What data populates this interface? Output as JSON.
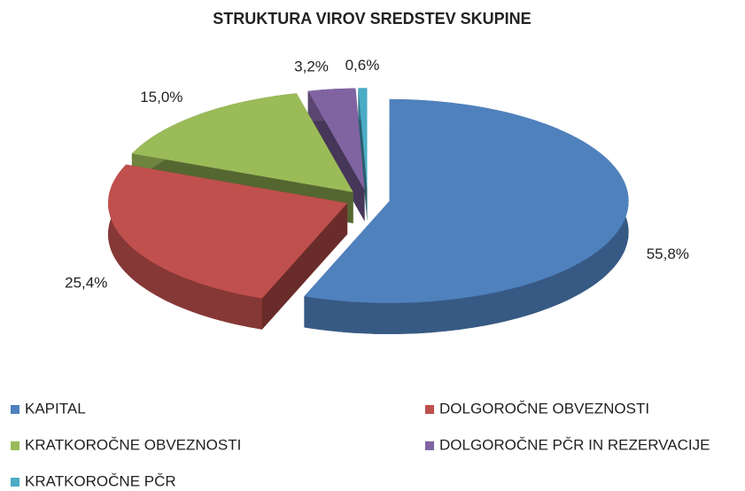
{
  "chart_data": {
    "type": "pie",
    "title": "STRUKTURA VIROV SREDSTEV SKUPINE",
    "categories": [
      "KAPITAL",
      "DOLGOROČNE OBVEZNOSTI",
      "KRATKOROČNE OBVEZNOSTI",
      "DOLGOROČNE PČR IN REZERVACIJE",
      "KRATKOROČNE PČR"
    ],
    "values": [
      55.8,
      25.4,
      15.0,
      3.2,
      0.6
    ],
    "value_labels": [
      "55,8%",
      "25,4%",
      "15,0%",
      "3,2%",
      "0,6%"
    ],
    "colors": [
      "#4f81bd",
      "#c0504d",
      "#9bbb59",
      "#8064a2",
      "#4bacc6"
    ],
    "legend": "bottom"
  }
}
